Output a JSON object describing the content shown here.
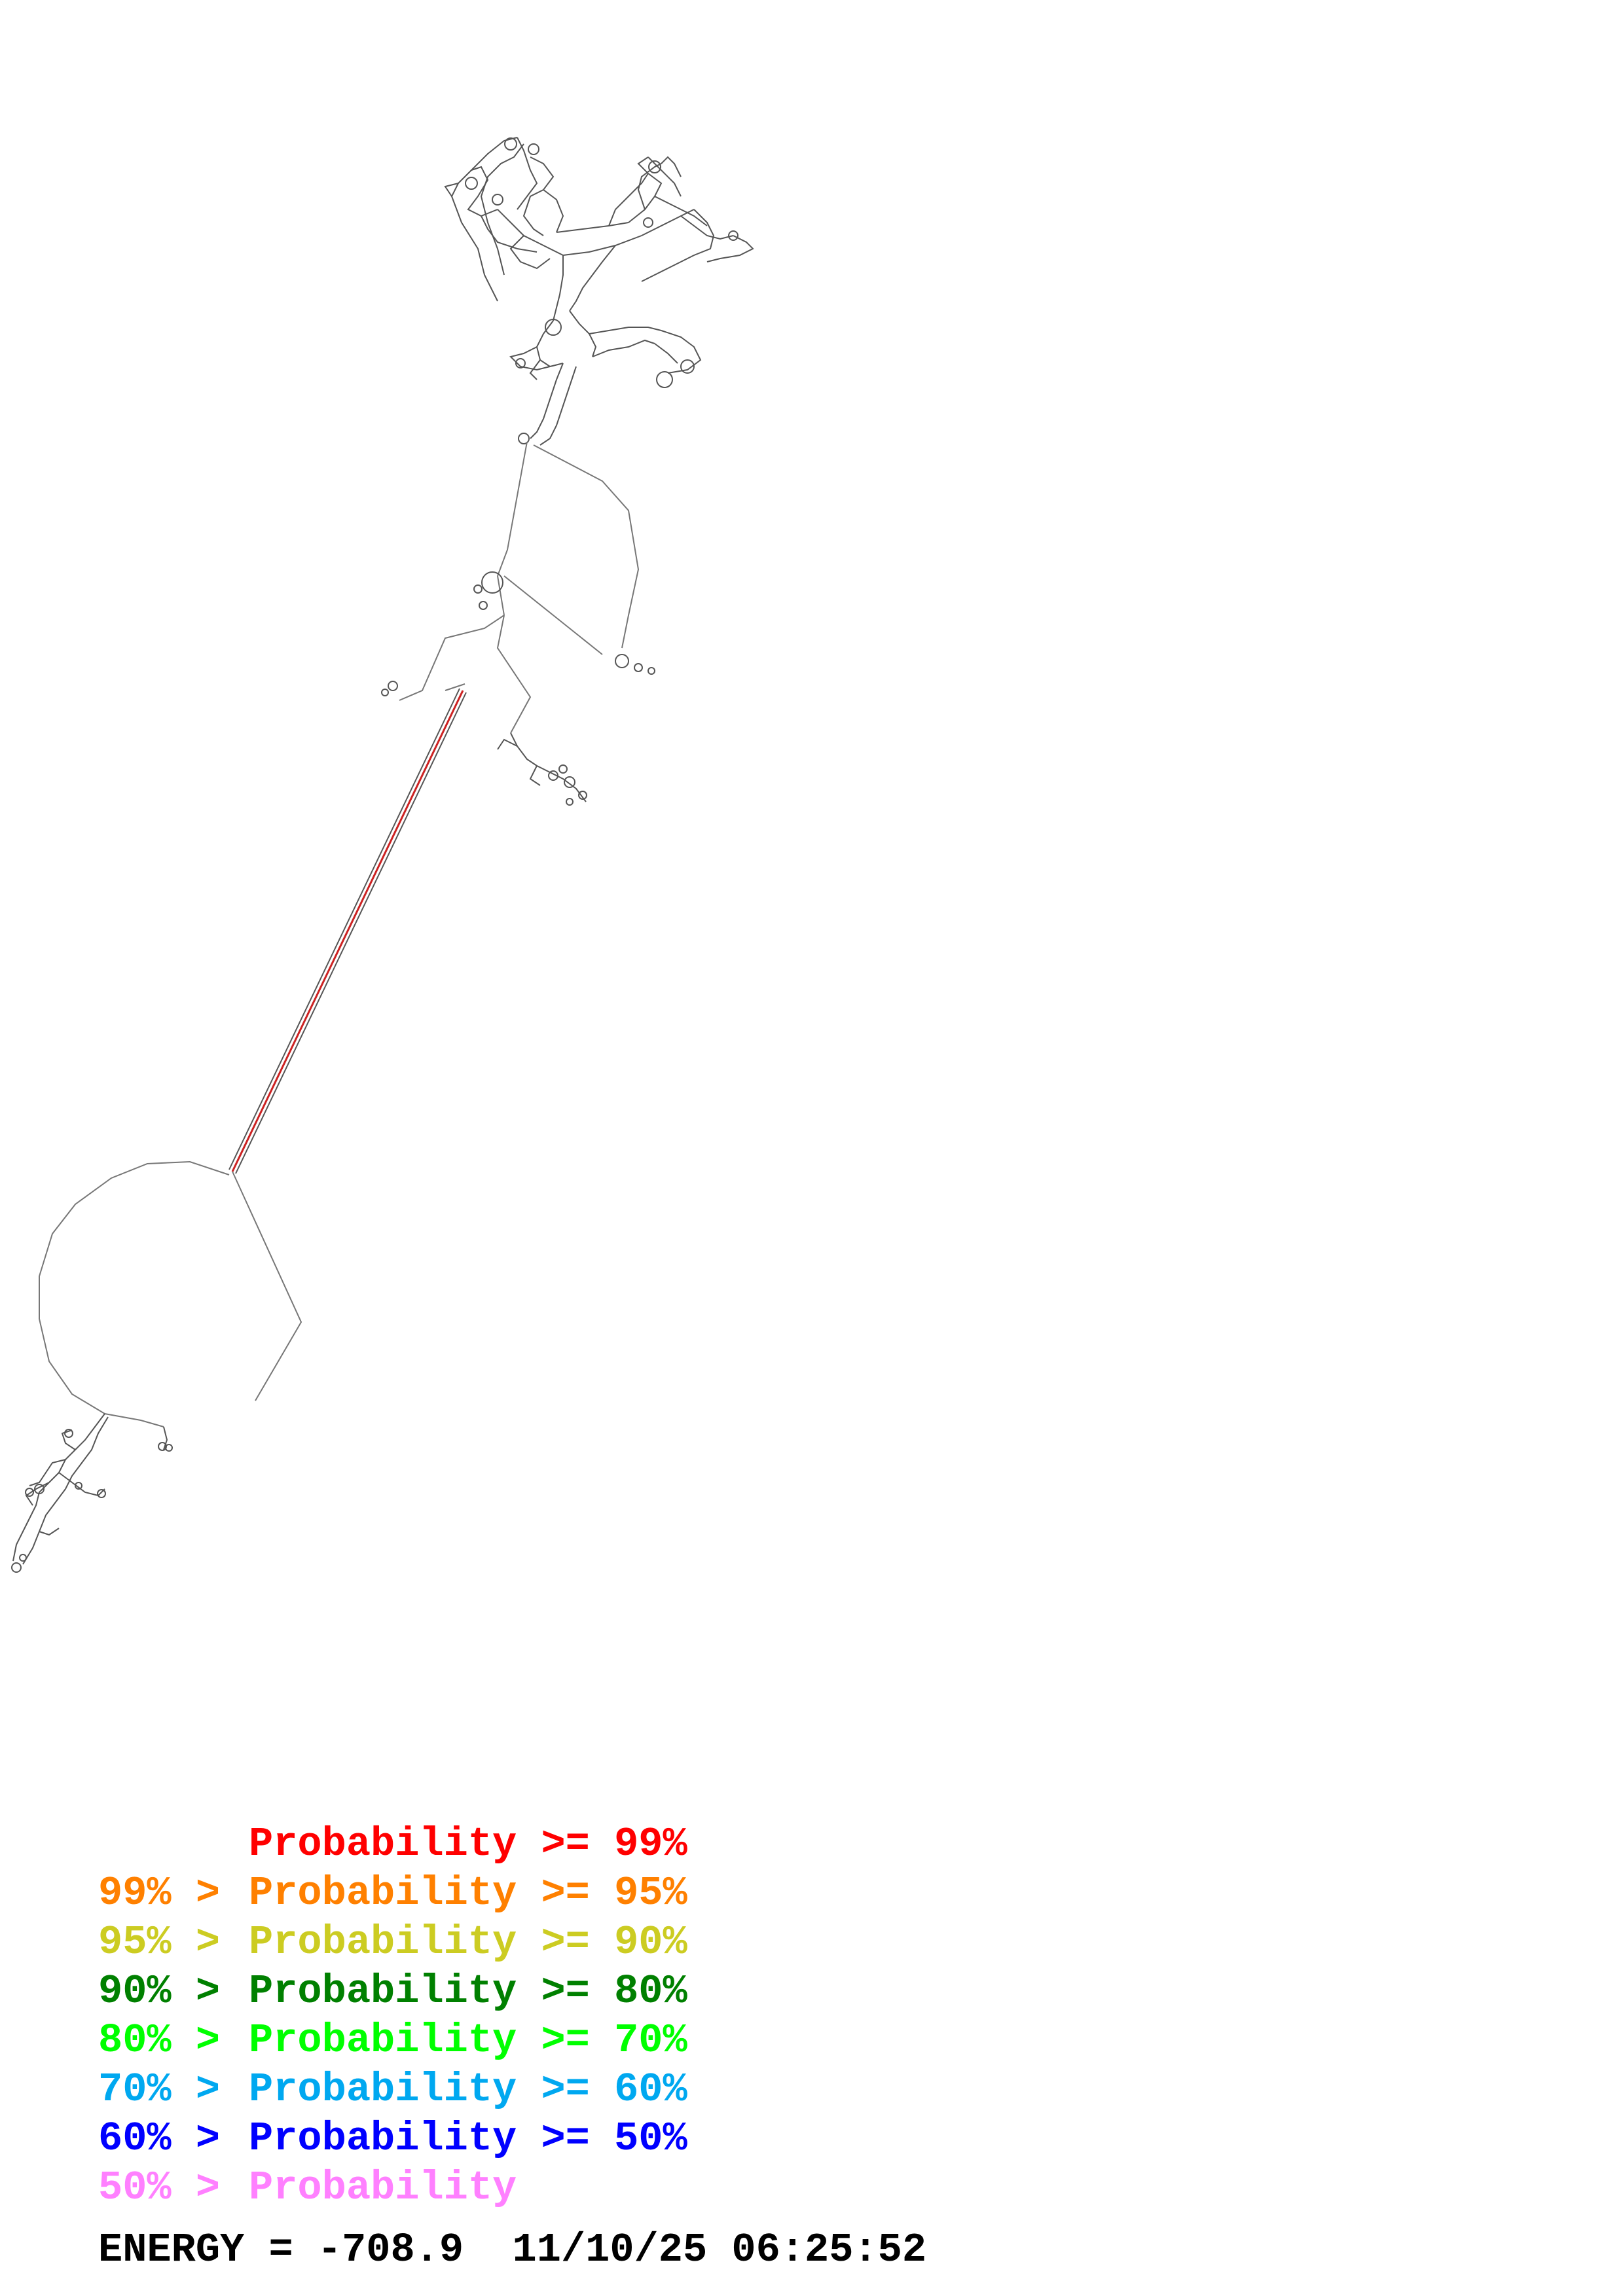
{
  "legend": {
    "rows": [
      {
        "lo": "",
        "hi": "Probability >= 99%",
        "color": "#ff0000"
      },
      {
        "lo": "99% >",
        "hi": "Probability >= 95%",
        "color": "#ff8000"
      },
      {
        "lo": "95% >",
        "hi": "Probability >= 90%",
        "color": "#cccc22"
      },
      {
        "lo": "90% >",
        "hi": "Probability >= 80%",
        "color": "#008000"
      },
      {
        "lo": "80% >",
        "hi": "Probability >= 70%",
        "color": "#00ff00"
      },
      {
        "lo": "70% >",
        "hi": "Probability >= 60%",
        "color": "#00a8f0"
      },
      {
        "lo": "60% >",
        "hi": "Probability >= 50%",
        "color": "#0000ff"
      },
      {
        "lo": "50% >",
        "hi": "Probability",
        "color": "#ff80ff"
      }
    ]
  },
  "footer": {
    "energy_label": "ENERGY = ",
    "energy_value": "-708.9",
    "date": "11/10/25",
    "time": "06:25:52"
  },
  "colors": {
    "backbone": "#555555",
    "pair": "#777777",
    "stem_high": "#cc2222"
  }
}
